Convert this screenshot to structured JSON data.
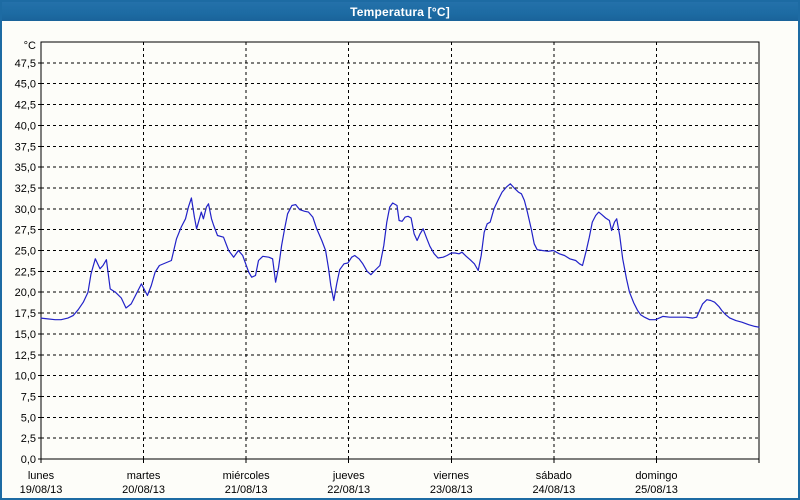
{
  "window": {
    "title": "Temperatura [°C]"
  },
  "colors": {
    "titlebar_bg": "#1d6ba3",
    "titlebar_text": "#ffffff",
    "frame_border": "#1d6ba3",
    "plot_background": "#fdfdf9",
    "plot_border": "#000000",
    "grid": "#000000",
    "series_line": "#2222c8",
    "labels": "#000000"
  },
  "chart_data": {
    "type": "line",
    "title": "Temperatura [°C]",
    "y_unit_label": "°C",
    "ylim": [
      0,
      50
    ],
    "y_tick_step": 2.5,
    "y_tick_labels": [
      "47,5",
      "45,0",
      "42,5",
      "40,0",
      "37,5",
      "35,0",
      "32,5",
      "30,0",
      "27,5",
      "25,0",
      "22,5",
      "20,0",
      "17,5",
      "15,0",
      "12,5",
      "10,0",
      "7,5",
      "5,0",
      "2,5",
      "0,0"
    ],
    "y_tick_values": [
      47.5,
      45.0,
      42.5,
      40.0,
      37.5,
      35.0,
      32.5,
      30.0,
      27.5,
      25.0,
      22.5,
      20.0,
      17.5,
      15.0,
      12.5,
      10.0,
      7.5,
      5.0,
      2.5,
      0.0
    ],
    "x_range_hours": [
      0,
      168
    ],
    "x_days": [
      {
        "name": "lunes",
        "date": "19/08/13"
      },
      {
        "name": "martes",
        "date": "20/08/13"
      },
      {
        "name": "miércoles",
        "date": "21/08/13"
      },
      {
        "name": "jueves",
        "date": "22/08/13"
      },
      {
        "name": "viernes",
        "date": "23/08/13"
      },
      {
        "name": "sábado",
        "date": "24/08/13"
      },
      {
        "name": "domingo",
        "date": "25/08/13"
      }
    ],
    "grid": true,
    "series": [
      {
        "name": "Temperatura",
        "unit": "°C",
        "points": [
          [
            0,
            16.9
          ],
          [
            1.6,
            16.8
          ],
          [
            3.3,
            16.7
          ],
          [
            4.7,
            16.7
          ],
          [
            6.3,
            16.9
          ],
          [
            7.5,
            17.2
          ],
          [
            8.7,
            17.9
          ],
          [
            9.9,
            18.8
          ],
          [
            11,
            20
          ],
          [
            11.7,
            22.2
          ],
          [
            12.7,
            24
          ],
          [
            13.8,
            22.8
          ],
          [
            14.5,
            23.2
          ],
          [
            15.3,
            23.9
          ],
          [
            16.2,
            20.4
          ],
          [
            17.4,
            20
          ],
          [
            18.8,
            19.3
          ],
          [
            19.9,
            18.1
          ],
          [
            21.1,
            18.6
          ],
          [
            22.3,
            19.8
          ],
          [
            23.5,
            21
          ],
          [
            24.9,
            19.6
          ],
          [
            25.8,
            20.8
          ],
          [
            26.7,
            22.4
          ],
          [
            27.7,
            23.2
          ],
          [
            29.1,
            23.5
          ],
          [
            30.5,
            23.8
          ],
          [
            31.7,
            26.4
          ],
          [
            32.8,
            27.8
          ],
          [
            33.8,
            28.8
          ],
          [
            34.5,
            30.2
          ],
          [
            35.2,
            31.3
          ],
          [
            35.9,
            29
          ],
          [
            36.4,
            27.6
          ],
          [
            37.5,
            29.6
          ],
          [
            38,
            28.8
          ],
          [
            38.7,
            30.2
          ],
          [
            39.2,
            30.6
          ],
          [
            39.9,
            28.8
          ],
          [
            40.4,
            28
          ],
          [
            41.3,
            26.8
          ],
          [
            42.7,
            26.6
          ],
          [
            43.9,
            25
          ],
          [
            45.1,
            24.2
          ],
          [
            46.2,
            25
          ],
          [
            47.2,
            24.4
          ],
          [
            48.6,
            22.4
          ],
          [
            49.3,
            21.8
          ],
          [
            50.2,
            22
          ],
          [
            50.9,
            23.8
          ],
          [
            51.9,
            24.3
          ],
          [
            53.3,
            24.2
          ],
          [
            54.2,
            24
          ],
          [
            54.9,
            21.2
          ],
          [
            55.6,
            23
          ],
          [
            56.3,
            25.6
          ],
          [
            57,
            27.6
          ],
          [
            57.7,
            29.4
          ],
          [
            58.7,
            30.4
          ],
          [
            59.6,
            30.5
          ],
          [
            60.5,
            29.9
          ],
          [
            61.7,
            29.7
          ],
          [
            62.6,
            29.6
          ],
          [
            63.6,
            29
          ],
          [
            64.5,
            27.6
          ],
          [
            65.7,
            26.2
          ],
          [
            66.6,
            25
          ],
          [
            67.3,
            22.8
          ],
          [
            67.8,
            20.8
          ],
          [
            68.5,
            19
          ],
          [
            69.2,
            21
          ],
          [
            69.9,
            22.7
          ],
          [
            70.9,
            23.4
          ],
          [
            71.8,
            23.5
          ],
          [
            72.7,
            24.2
          ],
          [
            73.4,
            24.4
          ],
          [
            74.4,
            24
          ],
          [
            75.3,
            23.4
          ],
          [
            76.3,
            22.5
          ],
          [
            77.2,
            22.1
          ],
          [
            78.1,
            22.6
          ],
          [
            79.3,
            23.2
          ],
          [
            80.2,
            25.6
          ],
          [
            80.9,
            28.4
          ],
          [
            81.6,
            30.2
          ],
          [
            82.3,
            30.7
          ],
          [
            83.3,
            30.4
          ],
          [
            83.8,
            28.6
          ],
          [
            84.5,
            28.5
          ],
          [
            85.2,
            29
          ],
          [
            85.9,
            29.1
          ],
          [
            86.6,
            28.9
          ],
          [
            87.3,
            27
          ],
          [
            88,
            26.2
          ],
          [
            88.7,
            27
          ],
          [
            89.4,
            27.6
          ],
          [
            90.3,
            26.4
          ],
          [
            91,
            25.5
          ],
          [
            92,
            24.6
          ],
          [
            92.9,
            24.1
          ],
          [
            94.1,
            24.2
          ],
          [
            95,
            24.4
          ],
          [
            96,
            24.7
          ],
          [
            96.9,
            24.7
          ],
          [
            97.8,
            24.6
          ],
          [
            98.5,
            24.8
          ],
          [
            99.5,
            24.3
          ],
          [
            100.4,
            23.9
          ],
          [
            101.4,
            23.4
          ],
          [
            102.3,
            22.6
          ],
          [
            103,
            24.4
          ],
          [
            103.7,
            27.2
          ],
          [
            104.4,
            28.2
          ],
          [
            105.1,
            28.4
          ],
          [
            106,
            30
          ],
          [
            107,
            31.1
          ],
          [
            107.9,
            32
          ],
          [
            108.9,
            32.6
          ],
          [
            109.8,
            33
          ],
          [
            110.7,
            32.5
          ],
          [
            111.7,
            32
          ],
          [
            112.4,
            31.8
          ],
          [
            113.1,
            31
          ],
          [
            113.8,
            29.6
          ],
          [
            114.7,
            27.6
          ],
          [
            115.4,
            25.8
          ],
          [
            116.1,
            25.1
          ],
          [
            117.3,
            25
          ],
          [
            118.7,
            24.9
          ],
          [
            119.9,
            25
          ],
          [
            121.3,
            24.6
          ],
          [
            122.5,
            24.4
          ],
          [
            123.7,
            24
          ],
          [
            125.1,
            23.8
          ],
          [
            126,
            23.4
          ],
          [
            126.7,
            23.2
          ],
          [
            127.6,
            25
          ],
          [
            128.3,
            26.6
          ],
          [
            129,
            28.4
          ],
          [
            129.8,
            29.2
          ],
          [
            130.5,
            29.6
          ],
          [
            131.2,
            29.3
          ],
          [
            132.1,
            28.9
          ],
          [
            133,
            28.6
          ],
          [
            133.5,
            27.4
          ],
          [
            134.2,
            28.4
          ],
          [
            134.7,
            28.8
          ],
          [
            135.4,
            26.8
          ],
          [
            136.1,
            24
          ],
          [
            137,
            21.6
          ],
          [
            137.7,
            20
          ],
          [
            138.7,
            18.7
          ],
          [
            139.6,
            17.8
          ],
          [
            140.3,
            17.3
          ],
          [
            141.2,
            17
          ],
          [
            142.4,
            16.7
          ],
          [
            143.8,
            16.7
          ],
          [
            145.5,
            17.1
          ],
          [
            147.1,
            17
          ],
          [
            149,
            17
          ],
          [
            150.9,
            17
          ],
          [
            152.5,
            16.9
          ],
          [
            153.4,
            17
          ],
          [
            154.1,
            17.8
          ],
          [
            154.8,
            18.6
          ],
          [
            155.8,
            19.1
          ],
          [
            156.7,
            19
          ],
          [
            157.6,
            18.8
          ],
          [
            158.6,
            18.3
          ],
          [
            159.3,
            17.8
          ],
          [
            160.2,
            17.3
          ],
          [
            161.2,
            16.9
          ],
          [
            162.6,
            16.6
          ],
          [
            164,
            16.4
          ],
          [
            165.6,
            16.1
          ],
          [
            167,
            15.9
          ],
          [
            168,
            15.8
          ]
        ]
      }
    ]
  }
}
